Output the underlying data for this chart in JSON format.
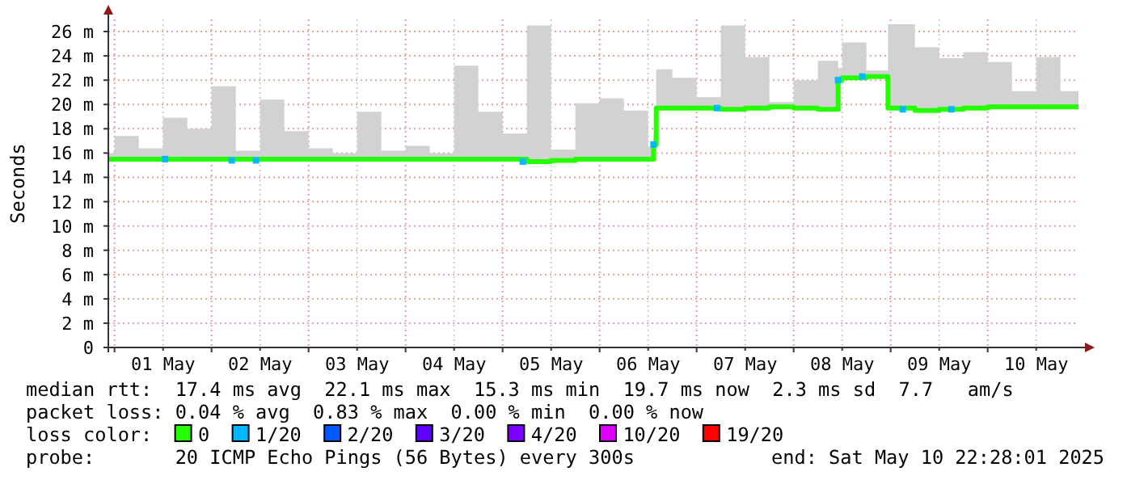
{
  "chart_data": {
    "type": "step",
    "ylabel": "Seconds",
    "legend_title": "loss color:",
    "legend": "bottom",
    "grid": true,
    "xlim": [
      "2025-04-30T22:28",
      "2025-05-10T22:28"
    ],
    "xticks": [
      {
        "value": "2025-05-01T00:00",
        "label": null
      },
      {
        "value": "2025-05-01T12:00",
        "label": "01 May"
      },
      {
        "value": "2025-05-02T00:00",
        "label": null
      },
      {
        "value": "2025-05-02T12:00",
        "label": "02 May"
      },
      {
        "value": "2025-05-03T00:00",
        "label": null
      },
      {
        "value": "2025-05-03T12:00",
        "label": "03 May"
      },
      {
        "value": "2025-05-04T00:00",
        "label": null
      },
      {
        "value": "2025-05-04T12:00",
        "label": "04 May"
      },
      {
        "value": "2025-05-05T00:00",
        "label": null
      },
      {
        "value": "2025-05-05T12:00",
        "label": "05 May"
      },
      {
        "value": "2025-05-06T00:00",
        "label": null
      },
      {
        "value": "2025-05-06T12:00",
        "label": "06 May"
      },
      {
        "value": "2025-05-07T00:00",
        "label": null
      },
      {
        "value": "2025-05-07T12:00",
        "label": "07 May"
      },
      {
        "value": "2025-05-08T00:00",
        "label": null
      },
      {
        "value": "2025-05-08T12:00",
        "label": "08 May"
      },
      {
        "value": "2025-05-09T00:00",
        "label": null
      },
      {
        "value": "2025-05-09T12:00",
        "label": "09 May"
      },
      {
        "value": "2025-05-10T00:00",
        "label": null
      },
      {
        "value": "2025-05-10T12:00",
        "label": "10 May"
      }
    ],
    "ylim": [
      0,
      27
    ],
    "yticks": [
      0,
      {
        "value": 2,
        "label": "2 m"
      },
      {
        "value": 4,
        "label": "4 m"
      },
      {
        "value": 6,
        "label": "6 m"
      },
      {
        "value": 8,
        "label": "8 m"
      },
      {
        "value": 10,
        "label": "10 m"
      },
      {
        "value": 12,
        "label": "12 m"
      },
      {
        "value": 14,
        "label": "14 m"
      },
      {
        "value": 16,
        "label": "16 m"
      },
      {
        "value": 18,
        "label": "18 m"
      },
      {
        "value": 20,
        "label": "20 m"
      },
      {
        "value": 22,
        "label": "22 m"
      },
      {
        "value": 24,
        "label": "24 m"
      },
      {
        "value": 26,
        "label": "26 m"
      }
    ],
    "series": [
      {
        "name": "0",
        "color": "#26ff00",
        "x": [
          "2025-04-30T22:28",
          "2025-05-01T00:00",
          "2025-05-01T06:00",
          "2025-05-01T12:00",
          "2025-05-01T18:00",
          "2025-05-02T00:00",
          "2025-05-02T06:00",
          "2025-05-02T12:00",
          "2025-05-02T18:00",
          "2025-05-03T00:00",
          "2025-05-03T06:00",
          "2025-05-03T12:00",
          "2025-05-03T18:00",
          "2025-05-04T00:00",
          "2025-05-04T06:00",
          "2025-05-04T12:00",
          "2025-05-04T18:00",
          "2025-05-05T00:00",
          "2025-05-05T06:00",
          "2025-05-05T12:00",
          "2025-05-05T18:00",
          "2025-05-06T00:00",
          "2025-05-06T06:00",
          "2025-05-06T12:00",
          "2025-05-06T13:20",
          "2025-05-06T14:00",
          "2025-05-06T18:00",
          "2025-05-07T00:00",
          "2025-05-07T06:00",
          "2025-05-07T12:00",
          "2025-05-07T18:00",
          "2025-05-08T00:00",
          "2025-05-08T06:00",
          "2025-05-08T11:00",
          "2025-05-08T12:00",
          "2025-05-08T18:00",
          "2025-05-08T23:20",
          "2025-05-09T06:00",
          "2025-05-09T12:00",
          "2025-05-09T18:00",
          "2025-05-10T00:00",
          "2025-05-10T06:00",
          "2025-05-10T12:00",
          "2025-05-10T18:00",
          "2025-05-10T22:28"
        ],
        "values": [
          15.5,
          15.5,
          15.5,
          15.5,
          15.5,
          15.5,
          15.5,
          15.5,
          15.5,
          15.5,
          15.5,
          15.5,
          15.5,
          15.5,
          15.5,
          15.5,
          15.5,
          15.5,
          15.3,
          15.4,
          15.5,
          15.5,
          15.5,
          15.5,
          16.7,
          19.7,
          19.7,
          19.7,
          19.6,
          19.7,
          19.8,
          19.7,
          19.6,
          22.0,
          22.2,
          22.3,
          19.7,
          19.5,
          19.6,
          19.7,
          19.8,
          19.8,
          19.8,
          19.8,
          19.8
        ],
        "lower": [
          15.4,
          15.4,
          15.4,
          15.4,
          15.4,
          15.4,
          15.4,
          15.4,
          15.4,
          15.4,
          15.4,
          15.4,
          15.4,
          15.4,
          15.4,
          15.4,
          15.4,
          15.4,
          15.2,
          15.3,
          15.4,
          15.4,
          15.4,
          15.4,
          16.6,
          19.6,
          19.6,
          19.6,
          19.5,
          19.6,
          19.7,
          19.6,
          19.5,
          21.9,
          22.1,
          22.2,
          19.6,
          19.4,
          19.5,
          19.6,
          19.7,
          19.7,
          19.7,
          19.7,
          19.7
        ],
        "upper": [
          16.0,
          17.4,
          16.4,
          18.9,
          18.0,
          21.5,
          16.2,
          20.4,
          17.8,
          16.4,
          16.0,
          19.4,
          16.2,
          16.6,
          16.0,
          23.2,
          19.4,
          17.6,
          26.5,
          16.3,
          20.1,
          20.5,
          19.5,
          16.5,
          17.5,
          22.9,
          22.2,
          20.6,
          26.5,
          23.9,
          20.2,
          22.0,
          23.6,
          23.0,
          25.1,
          22.8,
          26.6,
          24.7,
          23.8,
          24.3,
          23.5,
          21.1,
          23.9,
          21.1,
          20.0
        ]
      },
      {
        "name": "1/20",
        "type": "scatter",
        "marker": "square",
        "color": "#00b8ff",
        "x": [
          "2025-05-01T12:30",
          "2025-05-02T05:00",
          "2025-05-02T11:00",
          "2025-05-05T05:00",
          "2025-05-06T13:20",
          "2025-05-07T05:00",
          "2025-05-08T11:00",
          "2025-05-08T17:00",
          "2025-05-09T03:00",
          "2025-05-09T15:00"
        ],
        "values": [
          15.5,
          15.4,
          15.4,
          15.3,
          16.7,
          19.7,
          22.0,
          22.3,
          19.6,
          19.6
        ]
      },
      {
        "name": "2/20",
        "type": "scatter",
        "color": "#0059ff"
      },
      {
        "name": "3/20",
        "type": "scatter",
        "color": "#5e00ff"
      },
      {
        "name": "4/20",
        "type": "scatter",
        "color": "#7e00ff"
      },
      {
        "name": "10/20",
        "type": "scatter",
        "color": "#dd00ff"
      },
      {
        "name": "19/20",
        "type": "scatter",
        "color": "#ff0000"
      }
    ],
    "annotations": [
      "median rtt:  17.4 ms avg  22.1 ms max  15.3 ms min  19.7 ms now  2.3 ms sd  7.7   am/s",
      "packet loss: 0.04 % avg  0.83 % max  0.00 % min  0.00 % now",
      "probe:       20 ICMP Echo Pings (56 Bytes) every 300s",
      "end: Sat May 10 22:28:01 2025"
    ]
  }
}
